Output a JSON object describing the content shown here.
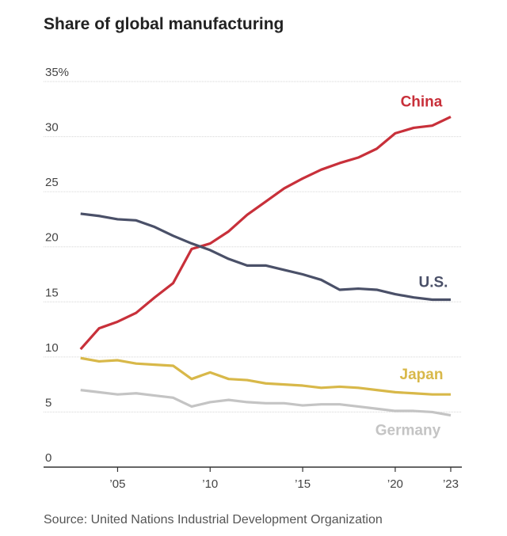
{
  "chart_data": {
    "type": "line",
    "title": "Share of global manufacturing",
    "source": "Source: United Nations Industrial Development Organization",
    "x": [
      2003,
      2004,
      2005,
      2006,
      2007,
      2008,
      2009,
      2010,
      2011,
      2012,
      2013,
      2014,
      2015,
      2016,
      2017,
      2018,
      2019,
      2020,
      2021,
      2022,
      2023
    ],
    "xlim": [
      2001,
      2023.6
    ],
    "xticks": [
      {
        "value": 2005,
        "label": "’05"
      },
      {
        "value": 2010,
        "label": "’10"
      },
      {
        "value": 2015,
        "label": "’15"
      },
      {
        "value": 2020,
        "label": "’20"
      },
      {
        "value": 2023,
        "label": "’23"
      }
    ],
    "ylim": [
      0,
      35
    ],
    "yticks": [
      0,
      5,
      10,
      15,
      20,
      25,
      30,
      {
        "value": 35,
        "label": "35%"
      }
    ],
    "grid": true,
    "series": [
      {
        "name": "China",
        "color": "#c8303a",
        "values": [
          10.7,
          12.6,
          13.2,
          14.0,
          15.4,
          16.7,
          19.8,
          20.3,
          21.4,
          22.9,
          24.1,
          25.3,
          26.2,
          27.0,
          27.6,
          28.1,
          28.9,
          30.3,
          30.8,
          31.0,
          31.8
        ]
      },
      {
        "name": "U.S.",
        "color": "#4a5068",
        "values": [
          23.0,
          22.8,
          22.5,
          22.4,
          21.8,
          21.0,
          20.3,
          19.7,
          18.9,
          18.3,
          18.3,
          17.9,
          17.5,
          17.0,
          16.1,
          16.2,
          16.1,
          15.7,
          15.4,
          15.2,
          15.2
        ]
      },
      {
        "name": "Japan",
        "color": "#d8b849",
        "values": [
          9.9,
          9.6,
          9.7,
          9.4,
          9.3,
          9.2,
          8.0,
          8.6,
          8.0,
          7.9,
          7.6,
          7.5,
          7.4,
          7.2,
          7.3,
          7.2,
          7.0,
          6.8,
          6.7,
          6.6,
          6.6
        ]
      },
      {
        "name": "Germany",
        "color": "#c4c4c4",
        "values": [
          7.0,
          6.8,
          6.6,
          6.7,
          6.5,
          6.3,
          5.5,
          5.9,
          6.1,
          5.9,
          5.8,
          5.8,
          5.6,
          5.7,
          5.7,
          5.5,
          5.3,
          5.1,
          5.1,
          5.0,
          4.7
        ]
      }
    ]
  }
}
